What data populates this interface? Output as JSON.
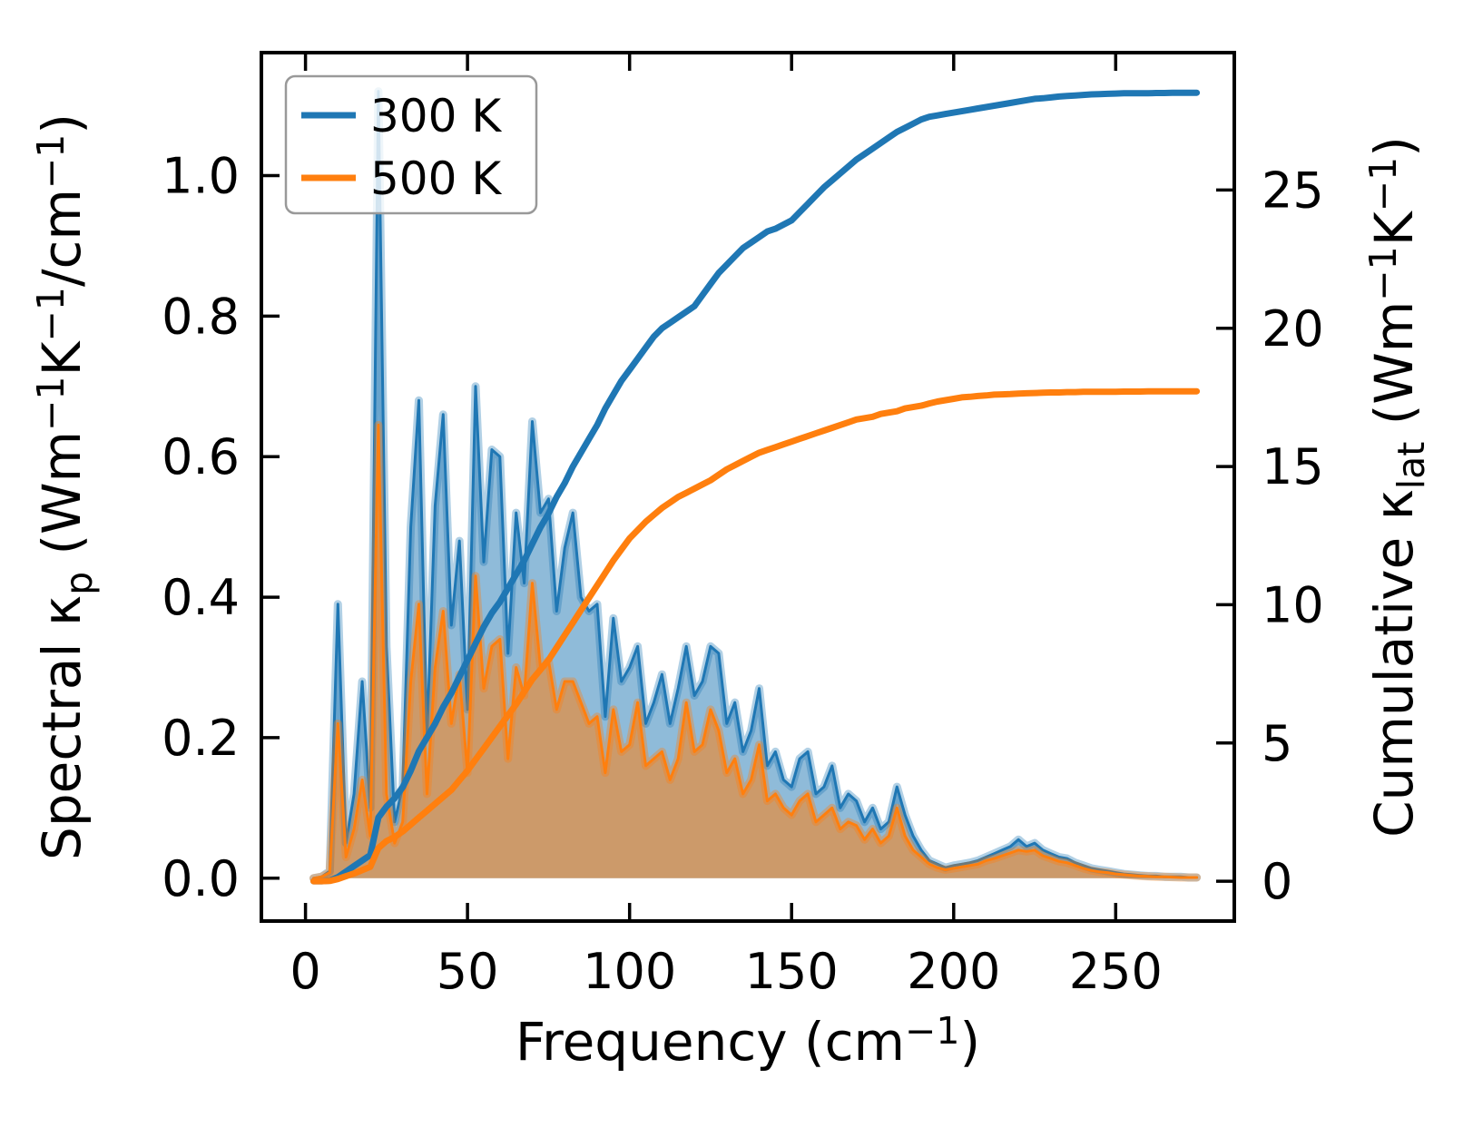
{
  "figure": {
    "background": "#ffffff"
  },
  "chart_data": {
    "type": "line",
    "title": "",
    "x_axis": {
      "label_parts": [
        {
          "t": "Frequency (cm",
          "s": "n"
        },
        {
          "t": "−1",
          "s": "sup"
        },
        {
          "t": ")",
          "s": "n"
        }
      ],
      "ticks": [
        {
          "value": 0,
          "label": "0"
        },
        {
          "value": 50,
          "label": "50"
        },
        {
          "value": 100,
          "label": "100"
        },
        {
          "value": 150,
          "label": "150"
        },
        {
          "value": 200,
          "label": "200"
        },
        {
          "value": 250,
          "label": "250"
        }
      ],
      "range": [
        -13.6,
        286.6
      ],
      "grid": false
    },
    "y_left": {
      "label_parts": [
        {
          "t": "Spectral κ",
          "s": "n"
        },
        {
          "t": "p",
          "s": "sub"
        },
        {
          "t": " (Wm",
          "s": "n"
        },
        {
          "t": "−1",
          "s": "sup"
        },
        {
          "t": "K",
          "s": "n"
        },
        {
          "t": "−1",
          "s": "sup"
        },
        {
          "t": "/cm",
          "s": "n"
        },
        {
          "t": "−1",
          "s": "sup"
        },
        {
          "t": ")",
          "s": "n"
        }
      ],
      "ticks": [
        {
          "value": 0.0,
          "label": "0.0"
        },
        {
          "value": 0.2,
          "label": "0.2"
        },
        {
          "value": 0.4,
          "label": "0.4"
        },
        {
          "value": 0.6,
          "label": "0.6"
        },
        {
          "value": 0.8,
          "label": "0.8"
        },
        {
          "value": 1.0,
          "label": "1.0"
        }
      ],
      "range": [
        -0.061,
        1.175
      ],
      "grid": false
    },
    "y_right": {
      "label_parts": [
        {
          "t": "Cumulative κ",
          "s": "n"
        },
        {
          "t": "lat",
          "s": "sub"
        },
        {
          "t": " (Wm",
          "s": "n"
        },
        {
          "t": "−1",
          "s": "sup"
        },
        {
          "t": "K",
          "s": "n"
        },
        {
          "t": "−1",
          "s": "sup"
        },
        {
          "t": ")",
          "s": "n"
        }
      ],
      "ticks": [
        {
          "value": 0,
          "label": "0"
        },
        {
          "value": 5,
          "label": "5"
        },
        {
          "value": 10,
          "label": "10"
        },
        {
          "value": 15,
          "label": "15"
        },
        {
          "value": 20,
          "label": "20"
        },
        {
          "value": 25,
          "label": "25"
        }
      ],
      "range": [
        -1.44,
        29.97
      ],
      "grid": false
    },
    "legend": {
      "position": "upper left",
      "entries": [
        {
          "label": "300 K",
          "color": "#1f77b4"
        },
        {
          "label": "500 K",
          "color": "#ff7f0e"
        }
      ]
    },
    "colors": {
      "c300": "#1f77b4",
      "c500": "#ff7f0e"
    },
    "x": [
      2.5,
      5,
      7.5,
      10,
      12.5,
      15,
      17.5,
      20,
      22.5,
      25,
      27.5,
      30,
      32.5,
      35,
      37.5,
      40,
      42.5,
      45,
      47.5,
      50,
      52.5,
      55,
      57.5,
      60,
      62.5,
      65,
      67.5,
      70,
      72.5,
      75,
      77.5,
      80,
      82.5,
      85,
      87.5,
      90,
      92.5,
      95,
      97.5,
      100,
      102.5,
      105,
      107.5,
      110,
      112.5,
      115,
      117.5,
      120,
      122.5,
      125,
      127.5,
      130,
      132.5,
      135,
      137.5,
      140,
      142.5,
      145,
      147.5,
      150,
      152.5,
      155,
      157.5,
      160,
      162.5,
      165,
      167.5,
      170,
      172.5,
      175,
      177.5,
      180,
      182.5,
      185,
      187.5,
      190,
      192.5,
      195,
      197.5,
      200,
      202.5,
      205,
      207.5,
      210,
      212.5,
      215,
      217.5,
      220,
      222.5,
      225,
      227.5,
      230,
      232.5,
      235,
      237.5,
      240,
      242.5,
      245,
      247.5,
      250,
      252.5,
      255,
      257.5,
      260,
      262.5,
      265,
      267.5,
      270,
      272.5,
      275
    ],
    "series": [
      {
        "name": "300 K spectral",
        "axis": "left",
        "style": "filled-line",
        "color": "#1f77b4",
        "fill_opacity": 0.5,
        "values": [
          0,
          0.002,
          0.01,
          0.39,
          0.05,
          0.12,
          0.28,
          0.1,
          1.12,
          0.33,
          0.08,
          0.13,
          0.5,
          0.68,
          0.2,
          0.53,
          0.66,
          0.36,
          0.48,
          0.24,
          0.7,
          0.45,
          0.61,
          0.6,
          0.32,
          0.52,
          0.42,
          0.65,
          0.52,
          0.54,
          0.38,
          0.47,
          0.52,
          0.4,
          0.38,
          0.39,
          0.23,
          0.37,
          0.28,
          0.3,
          0.33,
          0.22,
          0.25,
          0.29,
          0.22,
          0.27,
          0.33,
          0.26,
          0.28,
          0.33,
          0.32,
          0.22,
          0.25,
          0.18,
          0.21,
          0.27,
          0.16,
          0.18,
          0.14,
          0.13,
          0.17,
          0.18,
          0.12,
          0.13,
          0.16,
          0.1,
          0.12,
          0.11,
          0.08,
          0.1,
          0.07,
          0.08,
          0.13,
          0.09,
          0.06,
          0.04,
          0.025,
          0.02,
          0.015,
          0.018,
          0.02,
          0.022,
          0.025,
          0.03,
          0.035,
          0.04,
          0.045,
          0.055,
          0.045,
          0.05,
          0.04,
          0.035,
          0.03,
          0.028,
          0.022,
          0.018,
          0.014,
          0.012,
          0.01,
          0.008,
          0.006,
          0.005,
          0.004,
          0.003,
          0.003,
          0.002,
          0.002,
          0.002,
          0.001,
          0.001
        ]
      },
      {
        "name": "500 K spectral",
        "axis": "left",
        "style": "filled-line",
        "color": "#ff7f0e",
        "fill_opacity": 0.55,
        "values": [
          0,
          0.002,
          0.008,
          0.22,
          0.03,
          0.07,
          0.14,
          0.06,
          0.645,
          0.12,
          0.05,
          0.08,
          0.28,
          0.39,
          0.12,
          0.3,
          0.38,
          0.22,
          0.29,
          0.15,
          0.43,
          0.27,
          0.33,
          0.34,
          0.17,
          0.3,
          0.26,
          0.42,
          0.3,
          0.31,
          0.24,
          0.28,
          0.28,
          0.25,
          0.22,
          0.23,
          0.15,
          0.24,
          0.18,
          0.19,
          0.25,
          0.16,
          0.17,
          0.18,
          0.14,
          0.17,
          0.25,
          0.18,
          0.19,
          0.24,
          0.21,
          0.15,
          0.17,
          0.12,
          0.14,
          0.19,
          0.11,
          0.12,
          0.1,
          0.09,
          0.11,
          0.12,
          0.08,
          0.09,
          0.1,
          0.07,
          0.08,
          0.075,
          0.055,
          0.07,
          0.05,
          0.06,
          0.1,
          0.06,
          0.04,
          0.03,
          0.02,
          0.015,
          0.012,
          0.014,
          0.016,
          0.018,
          0.02,
          0.025,
          0.028,
          0.032,
          0.036,
          0.04,
          0.038,
          0.04,
          0.032,
          0.028,
          0.024,
          0.022,
          0.018,
          0.014,
          0.011,
          0.009,
          0.008,
          0.006,
          0.005,
          0.004,
          0.003,
          0.0025,
          0.002,
          0.002,
          0.0015,
          0.001,
          0.001,
          0.001
        ]
      },
      {
        "name": "300 K cumulative",
        "axis": "right",
        "style": "line",
        "color": "#1f77b4",
        "values": [
          0,
          0,
          0.02,
          0.15,
          0.35,
          0.55,
          0.75,
          0.95,
          2.3,
          2.7,
          3.0,
          3.4,
          4.0,
          4.7,
          5.2,
          5.7,
          6.3,
          6.8,
          7.4,
          8.0,
          8.6,
          9.2,
          9.7,
          10.1,
          10.6,
          11.1,
          11.6,
          12.2,
          12.8,
          13.3,
          13.9,
          14.4,
          15.0,
          15.5,
          16.0,
          16.5,
          17.1,
          17.6,
          18.1,
          18.5,
          18.9,
          19.3,
          19.7,
          20.0,
          20.2,
          20.4,
          20.6,
          20.8,
          21.2,
          21.6,
          22.0,
          22.3,
          22.6,
          22.9,
          23.1,
          23.3,
          23.5,
          23.6,
          23.75,
          23.9,
          24.2,
          24.5,
          24.8,
          25.1,
          25.35,
          25.6,
          25.85,
          26.1,
          26.3,
          26.5,
          26.7,
          26.9,
          27.1,
          27.25,
          27.4,
          27.55,
          27.65,
          27.7,
          27.75,
          27.8,
          27.85,
          27.9,
          27.95,
          28.0,
          28.05,
          28.1,
          28.15,
          28.2,
          28.25,
          28.3,
          28.32,
          28.35,
          28.38,
          28.4,
          28.42,
          28.44,
          28.46,
          28.47,
          28.48,
          28.49,
          28.5,
          28.5,
          28.5,
          28.5,
          28.51,
          28.51,
          28.52,
          28.52,
          28.52,
          28.52
        ]
      },
      {
        "name": "500 K cumulative",
        "axis": "right",
        "style": "line",
        "color": "#ff7f0e",
        "values": [
          0,
          0,
          0.01,
          0.08,
          0.18,
          0.28,
          0.4,
          0.52,
          1.2,
          1.45,
          1.6,
          1.8,
          2.05,
          2.3,
          2.55,
          2.8,
          3.05,
          3.3,
          3.65,
          4.0,
          4.4,
          4.8,
          5.2,
          5.6,
          6.0,
          6.4,
          6.85,
          7.3,
          7.65,
          8.0,
          8.45,
          8.9,
          9.35,
          9.8,
          10.25,
          10.7,
          11.15,
          11.6,
          12.0,
          12.4,
          12.7,
          13.0,
          13.25,
          13.5,
          13.7,
          13.9,
          14.05,
          14.2,
          14.35,
          14.5,
          14.7,
          14.9,
          15.05,
          15.2,
          15.35,
          15.5,
          15.6,
          15.7,
          15.8,
          15.9,
          16.0,
          16.1,
          16.2,
          16.3,
          16.4,
          16.5,
          16.6,
          16.7,
          16.75,
          16.8,
          16.9,
          16.95,
          17.0,
          17.1,
          17.15,
          17.2,
          17.28,
          17.35,
          17.4,
          17.45,
          17.5,
          17.52,
          17.55,
          17.57,
          17.6,
          17.61,
          17.62,
          17.64,
          17.65,
          17.66,
          17.67,
          17.68,
          17.68,
          17.69,
          17.69,
          17.7,
          17.7,
          17.7,
          17.7,
          17.7,
          17.71,
          17.71,
          17.71,
          17.72,
          17.72,
          17.72,
          17.72,
          17.72,
          17.72,
          17.72
        ]
      }
    ]
  }
}
